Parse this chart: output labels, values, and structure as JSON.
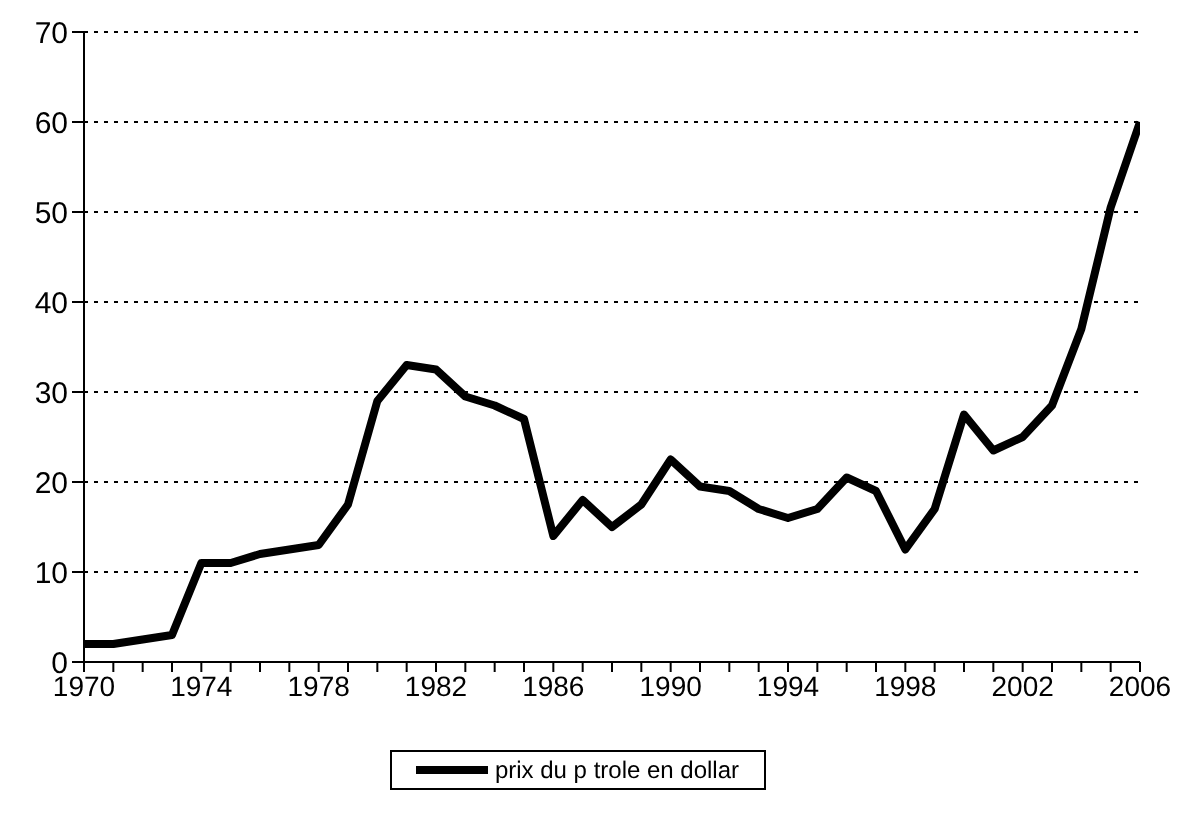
{
  "chart_data": {
    "type": "line",
    "x": [
      1970,
      1971,
      1972,
      1973,
      1974,
      1975,
      1976,
      1977,
      1978,
      1979,
      1980,
      1981,
      1982,
      1983,
      1984,
      1985,
      1986,
      1987,
      1988,
      1989,
      1990,
      1991,
      1992,
      1993,
      1994,
      1995,
      1996,
      1997,
      1998,
      1999,
      2000,
      2001,
      2002,
      2003,
      2004,
      2005,
      2006
    ],
    "series": [
      {
        "name": "prix du p trole en dollar",
        "color": "#000000",
        "values": [
          2,
          2,
          2.5,
          3,
          11,
          11,
          12,
          12.5,
          13,
          17.5,
          29,
          33,
          32.5,
          29.5,
          28.5,
          27,
          14,
          18,
          15,
          17.5,
          22.5,
          19.5,
          19,
          17,
          16,
          17,
          20.5,
          19,
          12.5,
          17,
          27.5,
          23.5,
          25,
          28.5,
          37,
          50.5,
          60
        ]
      }
    ],
    "xlim": [
      1970,
      2006
    ],
    "xticks": [
      1970,
      {
        "value": 1971,
        "label": null
      },
      {
        "value": 1972,
        "label": null
      },
      {
        "value": 1973,
        "label": null
      },
      1974,
      {
        "value": 1975,
        "label": null
      },
      {
        "value": 1976,
        "label": null
      },
      {
        "value": 1977,
        "label": null
      },
      1978,
      {
        "value": 1979,
        "label": null
      },
      {
        "value": 1980,
        "label": null
      },
      {
        "value": 1981,
        "label": null
      },
      1982,
      {
        "value": 1983,
        "label": null
      },
      {
        "value": 1984,
        "label": null
      },
      {
        "value": 1985,
        "label": null
      },
      1986,
      {
        "value": 1987,
        "label": null
      },
      {
        "value": 1988,
        "label": null
      },
      {
        "value": 1989,
        "label": null
      },
      1990,
      {
        "value": 1991,
        "label": null
      },
      {
        "value": 1992,
        "label": null
      },
      {
        "value": 1993,
        "label": null
      },
      1994,
      {
        "value": 1995,
        "label": null
      },
      {
        "value": 1996,
        "label": null
      },
      {
        "value": 1997,
        "label": null
      },
      1998,
      {
        "value": 1999,
        "label": null
      },
      {
        "value": 2000,
        "label": null
      },
      {
        "value": 2001,
        "label": null
      },
      2002,
      {
        "value": 2003,
        "label": null
      },
      {
        "value": 2004,
        "label": null
      },
      {
        "value": 2005,
        "label": null
      },
      2006
    ],
    "ylim": [
      0,
      70
    ],
    "yticks": [
      0,
      10,
      20,
      30,
      40,
      50,
      60,
      70
    ],
    "grid": "y",
    "legend": "bottom",
    "marker": "none",
    "line_style": "solid"
  }
}
